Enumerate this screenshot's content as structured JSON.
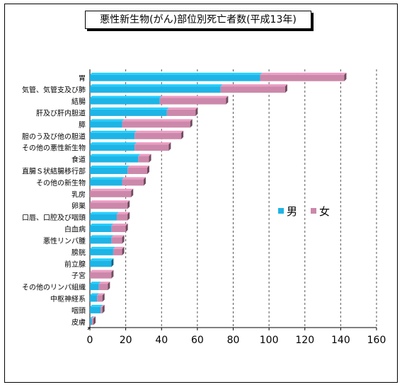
{
  "chart_data": {
    "type": "bar",
    "orientation": "horizontal",
    "stacked": true,
    "title": "悪性新生物(がん)部位別死亡者数(平成13年)",
    "categories": [
      "胃",
      "気管、気管支及び肺",
      "結腸",
      "肝及び肝内胆道",
      "膵",
      "胆のう及び他の胆道",
      "その他の悪性新生物",
      "食道",
      "直腸Ｓ状結腸移行部",
      "その他の新生物",
      "乳房",
      "卵巣",
      "口唇、口腔及び咽頭",
      "白血病",
      "悪性リンパ腫",
      "膀胱",
      "前立腺",
      "子宮",
      "その他のリンパ組織",
      "中枢神経系",
      "咽頭",
      "皮膚"
    ],
    "series": [
      {
        "name": "男",
        "color": "#1eb4e6",
        "values": [
          95,
          73,
          39,
          43,
          18,
          25,
          25,
          27,
          21,
          18,
          0,
          0,
          15,
          12,
          12,
          13,
          12,
          0,
          5,
          4,
          6,
          1
        ]
      },
      {
        "name": "女",
        "color": "#cc88aa",
        "values": [
          47,
          36,
          37,
          16,
          38,
          26,
          19,
          6,
          11,
          12,
          23,
          21,
          6,
          8,
          6,
          5,
          0,
          12,
          5,
          3,
          1,
          1
        ]
      }
    ],
    "xlim": [
      0,
      160
    ],
    "xticks": [
      "0",
      "20",
      "40",
      "60",
      "80",
      "100",
      "120",
      "140",
      "160"
    ],
    "grid": true,
    "legend": "right"
  }
}
